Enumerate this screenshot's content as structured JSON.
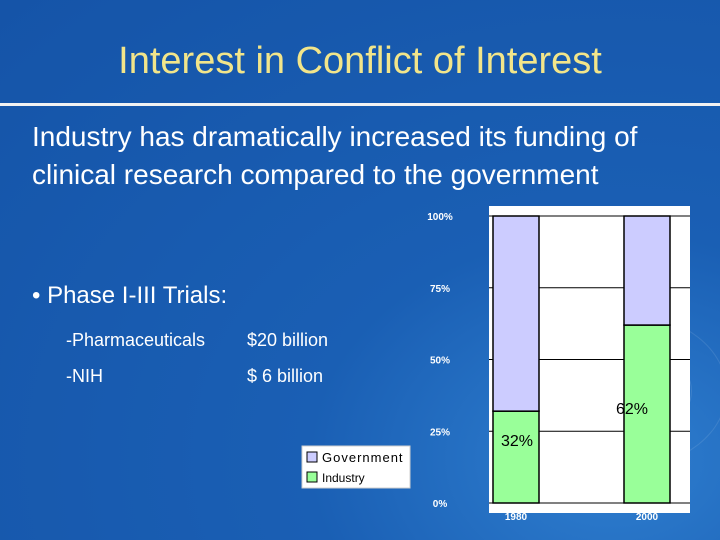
{
  "slide": {
    "title": "Interest in Conflict of Interest",
    "intro": "Industry has dramatically increased its funding of clinical research compared to the government",
    "trials_heading": "• Phase I-III Trials:",
    "funding_rows": [
      {
        "label": "-Pharmaceuticals",
        "value": "$20 billion"
      },
      {
        "label": "-NIH",
        "value": "$  6 billion"
      }
    ]
  },
  "chart_data": {
    "type": "bar",
    "stacked": true,
    "percent_stacked": true,
    "categories": [
      "1980",
      "2000"
    ],
    "series": [
      {
        "name": "Industry",
        "values": [
          32,
          62
        ],
        "color": "#99ff99"
      },
      {
        "name": "Government",
        "values": [
          68,
          38
        ],
        "color": "#ccccff"
      }
    ],
    "ylim": [
      0,
      100
    ],
    "yticks": [
      "0%",
      "25%",
      "50%",
      "75%",
      "100%"
    ],
    "data_labels": [
      "32%",
      "62%"
    ],
    "legend_position": "bottom-left",
    "grid": true,
    "background": "#ffffff"
  }
}
